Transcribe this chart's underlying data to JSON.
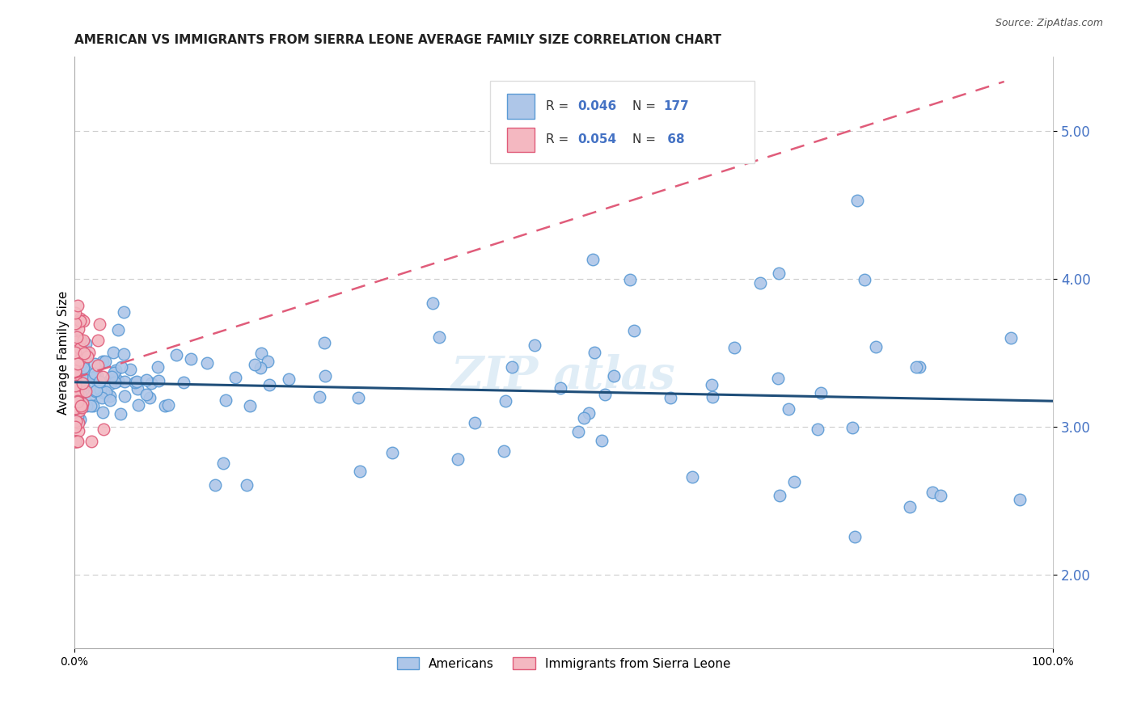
{
  "title": "AMERICAN VS IMMIGRANTS FROM SIERRA LEONE AVERAGE FAMILY SIZE CORRELATION CHART",
  "source": "Source: ZipAtlas.com",
  "ylabel": "Average Family Size",
  "xlim": [
    0,
    1.0
  ],
  "ylim": [
    1.5,
    5.5
  ],
  "yticks": [
    2.0,
    3.0,
    4.0,
    5.0
  ],
  "yticklabel_color": "#4472c4",
  "legend_labels": [
    "Americans",
    "Immigrants from Sierra Leone"
  ],
  "american_edge": "#5b9bd5",
  "american_face": "#aec6e8",
  "sierra_edge": "#e05c7a",
  "sierra_face": "#f4b8c1",
  "trend_american_color": "#1f4e79",
  "trend_sierra_color": "#e05c7a",
  "background_color": "#ffffff",
  "grid_color": "#cccccc",
  "title_fontsize": 11,
  "axis_label_fontsize": 11,
  "tick_fontsize": 10,
  "blue_text": "#4472c4",
  "watermark_color": "#c8dff0",
  "american_seed": 123,
  "sierra_seed": 456
}
